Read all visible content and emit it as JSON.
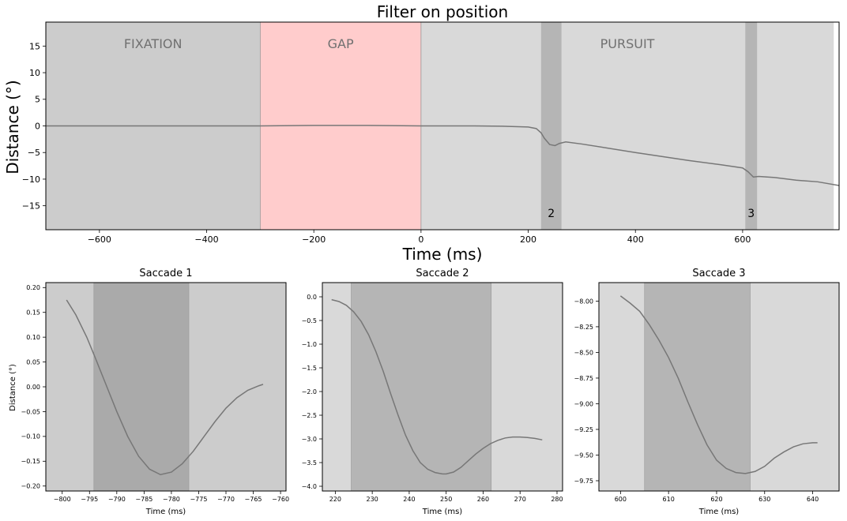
{
  "figure": {
    "colors": {
      "fixation": "#cccccc",
      "gap": "#ffcccc",
      "pursuit": "#d9d9d9",
      "saccade_band": "#b5b5b5",
      "saccade1_band": "#aaaaaa",
      "line": "#777777",
      "phase_label": "#707070"
    }
  },
  "chart_data": [
    {
      "type": "line",
      "title": "Filter on position",
      "xlabel": "Time (ms)",
      "ylabel": "Distance (°)",
      "xlim": [
        -700,
        780
      ],
      "ylim": [
        -19.5,
        19.5
      ],
      "xticks": [
        -600,
        -400,
        -200,
        0,
        200,
        400,
        600
      ],
      "xtick_labels": [
        "−600",
        "−400",
        "−200",
        "0",
        "200",
        "400",
        "600"
      ],
      "yticks": [
        15,
        10,
        5,
        0,
        -5,
        -10,
        -15
      ],
      "ytick_labels": [
        "15",
        "10",
        "5",
        "0",
        "−5",
        "−10",
        "−15"
      ],
      "grid": false,
      "phases": [
        {
          "label": "FIXATION",
          "start": -700,
          "end": -300,
          "color": "#cccccc"
        },
        {
          "label": "GAP",
          "start": -300,
          "end": 0,
          "color": "#ffcccc"
        },
        {
          "label": "PURSUIT",
          "start": 0,
          "end": 770,
          "color": "#d9d9d9"
        }
      ],
      "saccades": [
        {
          "label": "2",
          "start": 224,
          "end": 262
        },
        {
          "label": "3",
          "start": 605,
          "end": 627
        }
      ],
      "series": [
        {
          "x": [
            -700,
            -500,
            -300,
            -200,
            -100,
            0,
            100,
            150,
            200,
            215,
            224,
            230,
            240,
            250,
            258,
            270,
            300,
            400,
            500,
            560,
            600,
            610,
            620,
            630,
            660,
            700,
            740,
            780
          ],
          "y": [
            0,
            0,
            0,
            0.1,
            0.1,
            0,
            0,
            -0.05,
            -0.2,
            -0.5,
            -1.3,
            -2.3,
            -3.5,
            -3.7,
            -3.3,
            -3.0,
            -3.4,
            -5.0,
            -6.5,
            -7.3,
            -7.9,
            -8.6,
            -9.6,
            -9.5,
            -9.7,
            -10.2,
            -10.5,
            -11.2
          ]
        }
      ]
    },
    {
      "type": "line",
      "title": "Saccade 1",
      "xlabel": "Time (ms)",
      "ylabel": "Distance (°)",
      "xlim": [
        -803,
        -759
      ],
      "ylim": [
        -0.21,
        0.21
      ],
      "xticks": [
        -800,
        -795,
        -790,
        -785,
        -780,
        -775,
        -770,
        -765,
        -760
      ],
      "xtick_labels": [
        "−800",
        "−795",
        "−790",
        "−785",
        "−780",
        "−775",
        "−770",
        "−765",
        "−760"
      ],
      "yticks": [
        0.2,
        0.15,
        0.1,
        0.05,
        0.0,
        -0.05,
        -0.1,
        -0.15,
        -0.2
      ],
      "ytick_labels": [
        "0.20",
        "0.15",
        "0.10",
        "0.05",
        "0.00",
        "−0.05",
        "−0.10",
        "−0.15",
        "−0.20"
      ],
      "saccade": {
        "start": -794.2,
        "end": -776.8
      },
      "series": [
        {
          "x": [
            -799.2,
            -797.5,
            -795.5,
            -794,
            -792,
            -790,
            -788,
            -786,
            -784,
            -782,
            -780,
            -778,
            -776,
            -774,
            -772,
            -770,
            -768,
            -766,
            -764,
            -763.2
          ],
          "y": [
            0.175,
            0.145,
            0.1,
            0.06,
            0.005,
            -0.05,
            -0.1,
            -0.14,
            -0.166,
            -0.177,
            -0.172,
            -0.155,
            -0.13,
            -0.1,
            -0.07,
            -0.043,
            -0.022,
            -0.007,
            0.002,
            0.005
          ]
        }
      ]
    },
    {
      "type": "line",
      "title": "Saccade 2",
      "xlabel": "Time (ms)",
      "ylabel": "",
      "xlim": [
        216.5,
        281.5
      ],
      "ylim": [
        -4.1,
        0.3
      ],
      "xticks": [
        220,
        230,
        240,
        250,
        260,
        270,
        280
      ],
      "xtick_labels": [
        "220",
        "230",
        "240",
        "250",
        "260",
        "270",
        "280"
      ],
      "yticks": [
        0.0,
        -0.5,
        -1.0,
        -1.5,
        -2.0,
        -2.5,
        -3.0,
        -3.5,
        -4.0
      ],
      "ytick_labels": [
        "0.0",
        "−0.5",
        "−1.0",
        "−1.5",
        "−2.0",
        "−2.5",
        "−3.0",
        "−3.5",
        "−4.0"
      ],
      "saccade": {
        "start": 224.3,
        "end": 262.2
      },
      "series": [
        {
          "x": [
            219,
            221,
            223,
            225,
            227,
            229,
            231,
            233,
            235,
            237,
            239,
            241,
            243,
            245,
            247,
            249,
            250,
            252,
            254,
            256,
            258,
            260,
            262,
            264,
            266,
            268,
            270,
            272,
            274,
            276
          ],
          "y": [
            -0.06,
            -0.1,
            -0.18,
            -0.32,
            -0.52,
            -0.8,
            -1.16,
            -1.58,
            -2.05,
            -2.5,
            -2.92,
            -3.25,
            -3.5,
            -3.64,
            -3.71,
            -3.74,
            -3.74,
            -3.7,
            -3.6,
            -3.46,
            -3.32,
            -3.2,
            -3.1,
            -3.03,
            -2.98,
            -2.96,
            -2.96,
            -2.97,
            -2.99,
            -3.02
          ]
        }
      ]
    },
    {
      "type": "line",
      "title": "Saccade 3",
      "xlabel": "Time (ms)",
      "ylabel": "",
      "xlim": [
        595.5,
        645.5
      ],
      "ylim": [
        -9.85,
        -7.82
      ],
      "xticks": [
        600,
        610,
        620,
        630,
        640
      ],
      "xtick_labels": [
        "600",
        "610",
        "620",
        "630",
        "640"
      ],
      "yticks": [
        -8.0,
        -8.25,
        -8.5,
        -8.75,
        -9.0,
        -9.25,
        -9.5,
        -9.75
      ],
      "ytick_labels": [
        "−8.00",
        "−8.25",
        "−8.50",
        "−8.75",
        "−9.00",
        "−9.25",
        "−9.50",
        "−9.75"
      ],
      "saccade": {
        "start": 605,
        "end": 627
      },
      "series": [
        {
          "x": [
            600,
            602,
            604,
            606,
            608,
            610,
            612,
            614,
            616,
            618,
            620,
            622,
            624,
            626,
            628,
            630,
            632,
            634,
            636,
            638,
            640,
            641
          ],
          "y": [
            -7.95,
            -8.02,
            -8.1,
            -8.23,
            -8.38,
            -8.55,
            -8.75,
            -8.98,
            -9.2,
            -9.4,
            -9.55,
            -9.63,
            -9.67,
            -9.68,
            -9.66,
            -9.61,
            -9.53,
            -9.47,
            -9.42,
            -9.39,
            -9.38,
            -9.38
          ]
        }
      ]
    }
  ]
}
